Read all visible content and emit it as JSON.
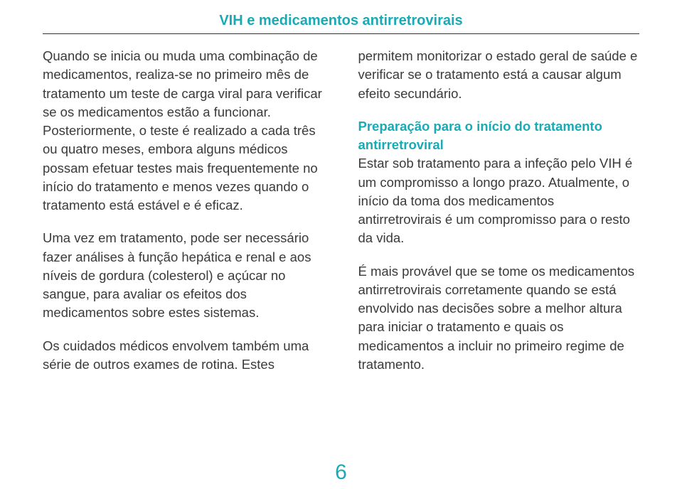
{
  "header": {
    "title": "VIH e medicamentos antirretrovirais"
  },
  "left": {
    "p1": "Quando se inicia ou muda uma combinação de medicamentos, realiza-se no primeiro mês de tratamento um teste de carga viral para verificar se os medicamentos estão a funcionar. Posteriormente, o teste é realizado a cada três ou quatro meses, embora alguns médicos possam efetuar testes mais frequentemente no início do tratamento e menos vezes quando o tratamento está estável e é eficaz.",
    "p2": "Uma vez em tratamento, pode ser necessário fazer análises à função hepática e renal e aos níveis de gordura (colesterol) e açúcar no sangue, para avaliar os efeitos dos medicamentos sobre estes sistemas.",
    "p3": "Os cuidados médicos envolvem também uma série de outros exames de rotina. Estes"
  },
  "right": {
    "p1": "permitem monitorizar o estado geral de saúde e verificar se o tratamento está a causar algum efeito secundário.",
    "subhead": "Preparação para o início do tratamento antirretroviral",
    "p2b": "Estar sob tratamento para a infeção pelo VIH é um compromisso a longo prazo. Atualmente, o início da toma dos medicamentos antirretrovirais é um compromisso para o resto da vida.",
    "p3": "É mais provável que se tome os medicamentos antirretrovirais corretamente quando se está envolvido nas decisões sobre a melhor altura para iniciar o tratamento e quais os medicamentos a incluir no primeiro regime de tratamento."
  },
  "page_number": "6",
  "colors": {
    "accent": "#1aaab5",
    "text": "#3a3a3a",
    "bg": "#ffffff"
  }
}
